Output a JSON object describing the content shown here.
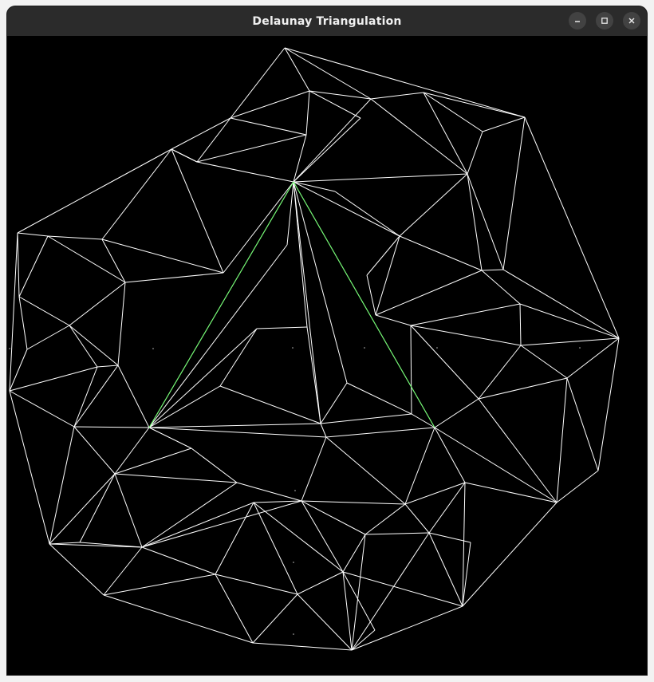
{
  "window": {
    "title": "Delaunay Triangulation",
    "controls": [
      "minimize-icon",
      "maximize-icon",
      "close-icon"
    ]
  },
  "colors": {
    "background": "#000000",
    "edge": "#ffffff",
    "highlight_edge": "#66ff66",
    "titlebar": "#2b2b2b"
  }
}
